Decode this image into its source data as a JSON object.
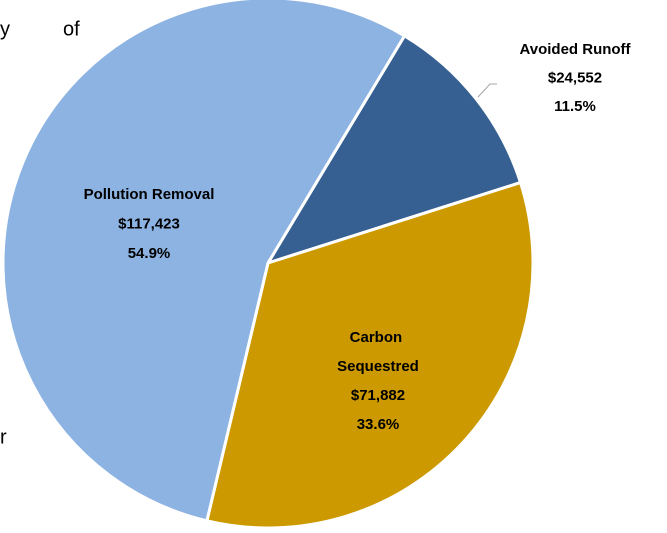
{
  "chart_data": {
    "type": "pie",
    "categories": [
      "Avoided Runoff",
      "Carbon Sequestred",
      "Pollution Removal"
    ],
    "values": [
      24552,
      71882,
      117423
    ],
    "value_labels": [
      "$24,552",
      "$71,882",
      "$117,423"
    ],
    "percent_labels": [
      "11.5%",
      "33.6%",
      "54.9%"
    ],
    "colors": [
      "#376092",
      "#cc9900",
      "#8db3e2"
    ],
    "start_angle": 31
  },
  "background_text": [
    "y",
    "of",
    "r"
  ]
}
